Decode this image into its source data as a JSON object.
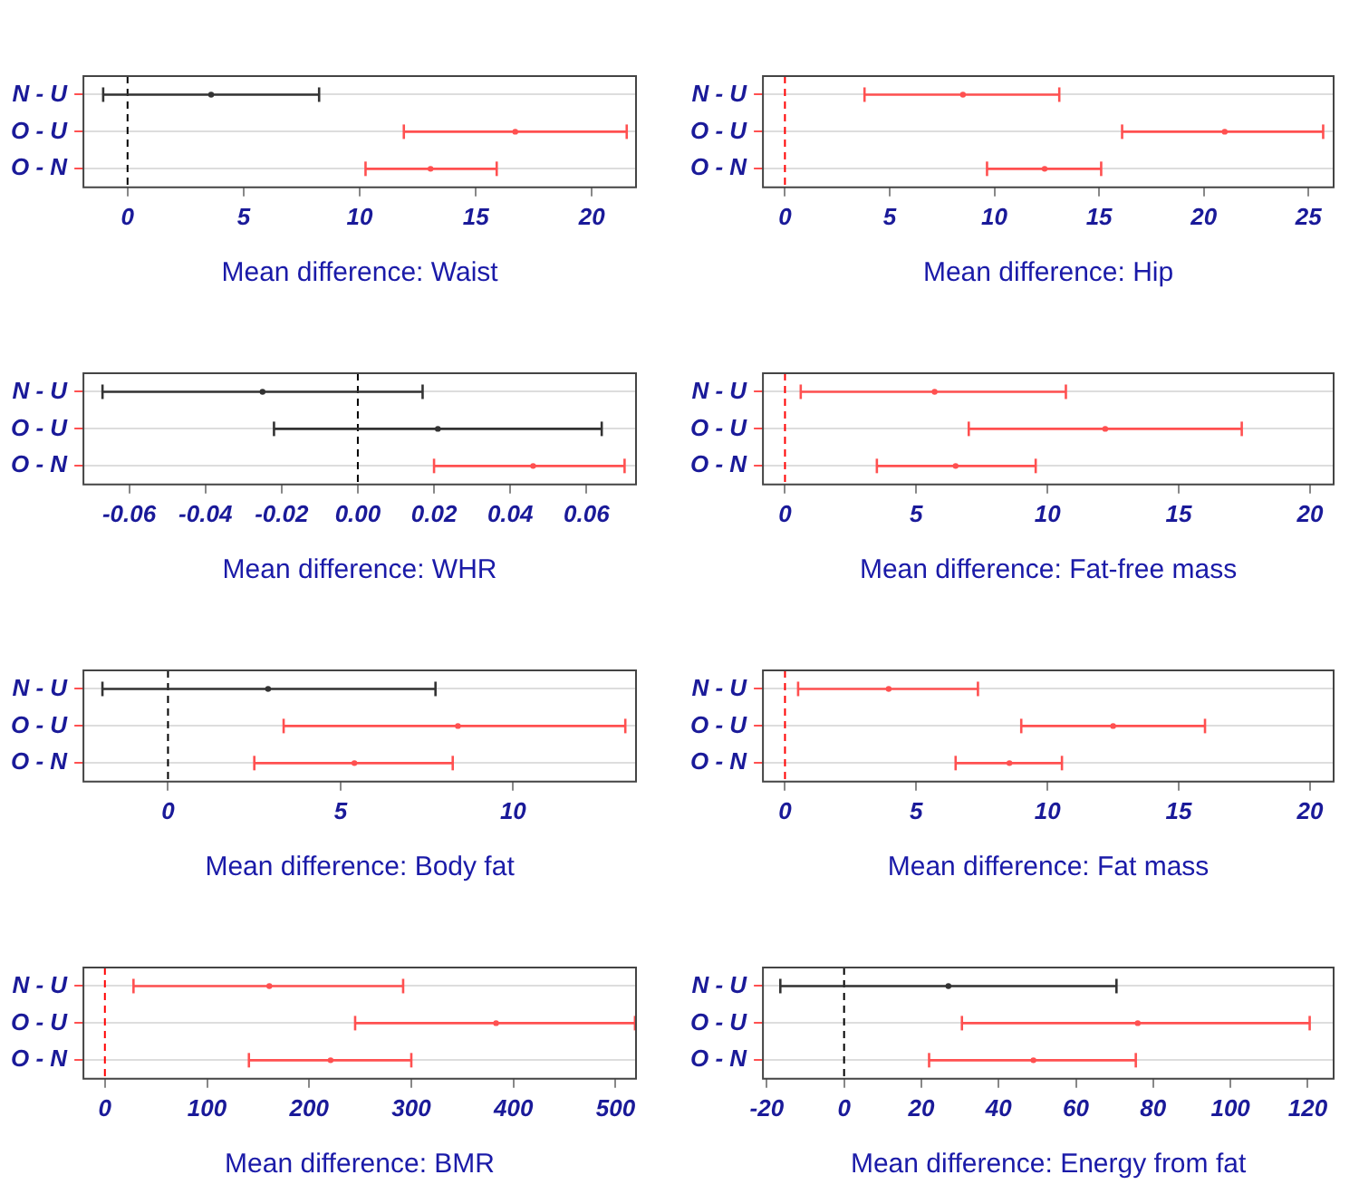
{
  "chart_data": [
    {
      "type": "scatter",
      "orientation": "horizontal",
      "categories": [
        "N - U",
        "O - U",
        "O - N"
      ],
      "values": [
        3.6,
        16.7,
        13.05
      ],
      "errors": [
        [
          -1.05,
          8.25
        ],
        [
          11.9,
          21.5
        ],
        [
          10.25,
          15.9
        ]
      ],
      "colors": [
        "#333333",
        "#ff5050",
        "#ff5050"
      ],
      "xlabel": "Mean difference: Waist",
      "xlim": [
        -1.9,
        21.9
      ],
      "xticks": [
        0,
        5,
        10,
        15,
        20
      ],
      "ref_lines": [
        {
          "axis": "x",
          "value": 0,
          "color": "#000000",
          "line_style": "dashed"
        }
      ],
      "grid": "y",
      "marker": "circle"
    },
    {
      "type": "scatter",
      "orientation": "horizontal",
      "categories": [
        "N - U",
        "O - U",
        "O - N"
      ],
      "values": [
        8.5,
        21.0,
        12.4
      ],
      "errors": [
        [
          3.8,
          13.1
        ],
        [
          16.1,
          25.7
        ],
        [
          9.65,
          15.1
        ]
      ],
      "colors": [
        "#ff5050",
        "#ff5050",
        "#ff5050"
      ],
      "xlabel": "Mean difference: Hip",
      "xlim": [
        -1.05,
        26.2
      ],
      "xticks": [
        0,
        5,
        10,
        15,
        20,
        25
      ],
      "ref_lines": [
        {
          "axis": "x",
          "value": 0,
          "color": "#ff0000",
          "line_style": "dashed"
        }
      ],
      "grid": "y",
      "marker": "circle"
    },
    {
      "type": "scatter",
      "orientation": "horizontal",
      "categories": [
        "N - U",
        "O - U",
        "O - N"
      ],
      "values": [
        -0.025,
        0.021,
        0.046
      ],
      "errors": [
        [
          -0.067,
          0.017
        ],
        [
          -0.022,
          0.064
        ],
        [
          0.02,
          0.07
        ]
      ],
      "colors": [
        "#333333",
        "#333333",
        "#ff5050"
      ],
      "xlabel": "Mean difference: WHR",
      "xlim": [
        -0.072,
        0.073
      ],
      "xticks": [
        -0.06,
        -0.04,
        -0.02,
        {
          "value": 0,
          "label": "0.00"
        },
        0.02,
        0.04,
        0.06
      ],
      "ref_lines": [
        {
          "axis": "x",
          "value": 0,
          "color": "#000000",
          "line_style": "dashed"
        }
      ],
      "grid": "y",
      "marker": "circle"
    },
    {
      "type": "scatter",
      "orientation": "horizontal",
      "categories": [
        "N - U",
        "O - U",
        "O - N"
      ],
      "values": [
        5.7,
        12.2,
        6.5
      ],
      "errors": [
        [
          0.6,
          10.7
        ],
        [
          7.0,
          17.4
        ],
        [
          3.5,
          9.55
        ]
      ],
      "colors": [
        "#ff5050",
        "#ff5050",
        "#ff5050"
      ],
      "xlabel": "Mean difference: Fat-free mass",
      "xlim": [
        -0.84,
        20.9
      ],
      "xticks": [
        0,
        5,
        10,
        15,
        20
      ],
      "ref_lines": [
        {
          "axis": "x",
          "value": 0,
          "color": "#ff0000",
          "line_style": "dashed"
        }
      ],
      "grid": "y",
      "marker": "circle"
    },
    {
      "type": "scatter",
      "orientation": "horizontal",
      "categories": [
        "N - U",
        "O - U",
        "O - N"
      ],
      "values": [
        2.9,
        8.4,
        5.4
      ],
      "errors": [
        [
          -1.9,
          7.75
        ],
        [
          3.35,
          13.25
        ],
        [
          2.5,
          8.25
        ]
      ],
      "colors": [
        "#333333",
        "#ff5050",
        "#ff5050"
      ],
      "xlabel": "Mean difference: Body fat",
      "xlim": [
        -2.45,
        13.56
      ],
      "xticks": [
        0,
        5,
        10
      ],
      "ref_lines": [
        {
          "axis": "x",
          "value": 0,
          "color": "#000000",
          "line_style": "dashed"
        }
      ],
      "grid": "y",
      "marker": "circle"
    },
    {
      "type": "scatter",
      "orientation": "horizontal",
      "categories": [
        "N - U",
        "O - U",
        "O - N"
      ],
      "values": [
        3.95,
        12.5,
        8.55
      ],
      "errors": [
        [
          0.5,
          7.35
        ],
        [
          9.0,
          16.0
        ],
        [
          6.5,
          10.55
        ]
      ],
      "colors": [
        "#ff5050",
        "#ff5050",
        "#ff5050"
      ],
      "xlabel": "Mean difference: Fat mass",
      "xlim": [
        -0.84,
        20.9
      ],
      "xticks": [
        0,
        5,
        10,
        15,
        20
      ],
      "ref_lines": [
        {
          "axis": "x",
          "value": 0,
          "color": "#ff0000",
          "line_style": "dashed"
        }
      ],
      "grid": "y",
      "marker": "circle"
    },
    {
      "type": "scatter",
      "orientation": "horizontal",
      "categories": [
        "N - U",
        "O - U",
        "O - N"
      ],
      "values": [
        161,
        383,
        221
      ],
      "errors": [
        [
          28,
          292
        ],
        [
          245,
          519
        ],
        [
          141,
          300
        ]
      ],
      "colors": [
        "#ff5050",
        "#ff5050",
        "#ff5050"
      ],
      "xlabel": "Mean difference: BMR",
      "xlim": [
        -21,
        520
      ],
      "xticks": [
        0,
        100,
        200,
        300,
        400,
        500
      ],
      "ref_lines": [
        {
          "axis": "x",
          "value": 0,
          "color": "#ff0000",
          "line_style": "dashed"
        }
      ],
      "grid": "y",
      "marker": "circle"
    },
    {
      "type": "scatter",
      "orientation": "horizontal",
      "categories": [
        "N - U",
        "O - U",
        "O - N"
      ],
      "values": [
        27,
        76,
        49
      ],
      "errors": [
        [
          -16.5,
          70.5
        ],
        [
          30.5,
          120.5
        ],
        [
          22,
          75.5
        ]
      ],
      "colors": [
        "#333333",
        "#ff5050",
        "#ff5050"
      ],
      "xlabel": "Mean difference: Energy from fat",
      "xlim": [
        -21,
        126.7
      ],
      "xticks": [
        -20,
        0,
        20,
        40,
        60,
        80,
        100,
        120
      ],
      "ref_lines": [
        {
          "axis": "x",
          "value": 0,
          "color": "#000000",
          "line_style": "dashed"
        }
      ],
      "grid": "y",
      "marker": "circle"
    }
  ]
}
